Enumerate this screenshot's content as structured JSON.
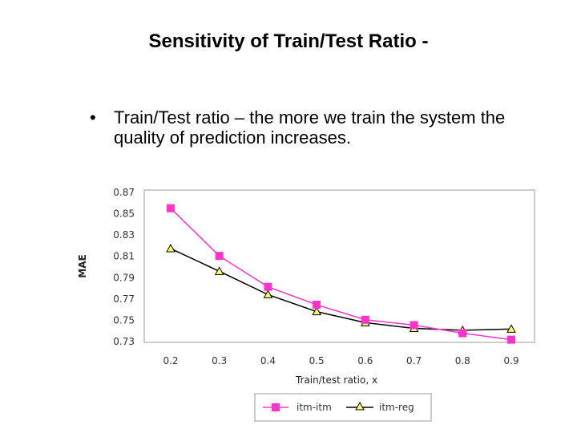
{
  "slide": {
    "title": "Sensitivity of Train/Test Ratio -",
    "bullet_marker": "•",
    "bullet": "Train/Test ratio – the more we train the system the quality of prediction increases."
  },
  "chart_data": {
    "type": "line",
    "title": "",
    "xlabel": "Train/test ratio, x",
    "ylabel": "MAE",
    "categories": [
      "0.2",
      "0.3",
      "0.4",
      "0.5",
      "0.6",
      "0.7",
      "0.8",
      "0.9"
    ],
    "x": [
      0.2,
      0.3,
      0.4,
      0.5,
      0.6,
      0.7,
      0.8,
      0.9
    ],
    "ylim": [
      0.73,
      0.87
    ],
    "yticks": [
      "0.87",
      "0.85",
      "0.83",
      "0.81",
      "0.79",
      "0.77",
      "0.75",
      "0.73"
    ],
    "legend_position": "bottom",
    "series": [
      {
        "name": "itm-itm",
        "color": "#ff33cc",
        "marker": "square",
        "values": [
          0.8552,
          0.8104,
          0.7814,
          0.7646,
          0.7505,
          0.7455,
          0.7379,
          0.7318
        ]
      },
      {
        "name": "itm-reg",
        "color": "#000000",
        "marker": "triangle",
        "values": [
          0.8173,
          0.796,
          0.7741,
          0.7581,
          0.7478,
          0.7424,
          0.7406,
          0.7418
        ]
      }
    ]
  }
}
